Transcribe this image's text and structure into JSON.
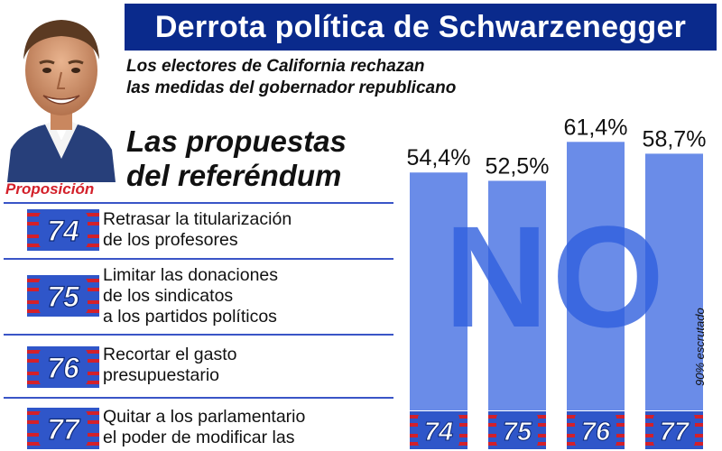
{
  "title": "Derrota política de Schwarzenegger",
  "subtitle": {
    "lines": [
      "Los electores de California rechazan",
      "las medidas del gobernador republicano"
    ]
  },
  "heading": {
    "lines": [
      "Las propuestas",
      "del referéndum"
    ]
  },
  "proposition_label": "Proposición",
  "propositions": [
    {
      "number": "74",
      "lines": [
        "Retrasar la titularización",
        "de los profesores"
      ]
    },
    {
      "number": "75",
      "lines": [
        "Limitar las donaciones",
        "de los sindicatos",
        "a los partidos políticos"
      ]
    },
    {
      "number": "76",
      "lines": [
        "Recortar el gasto",
        "presupuestario"
      ]
    },
    {
      "number": "77",
      "lines": [
        "Quitar a los parlamentario",
        "el poder de modificar las"
      ]
    }
  ],
  "colors": {
    "title_bg": "#0a2a8c",
    "bar": "#6a8ce8",
    "no_text": "#2f5fdd",
    "badge_blue": "#2f56c9",
    "badge_red": "#d3202a",
    "prop_label": "#d3202a"
  },
  "chart_data": {
    "type": "bar",
    "categories": [
      "74",
      "75",
      "76",
      "77"
    ],
    "values": [
      54.4,
      52.5,
      61.4,
      58.7
    ],
    "value_labels": [
      "54,4%",
      "52,5%",
      "61,4%",
      "58,7%"
    ],
    "overlay_text": "NO",
    "note": "90% escrutado",
    "ylim": [
      0,
      66
    ],
    "grid": false
  }
}
